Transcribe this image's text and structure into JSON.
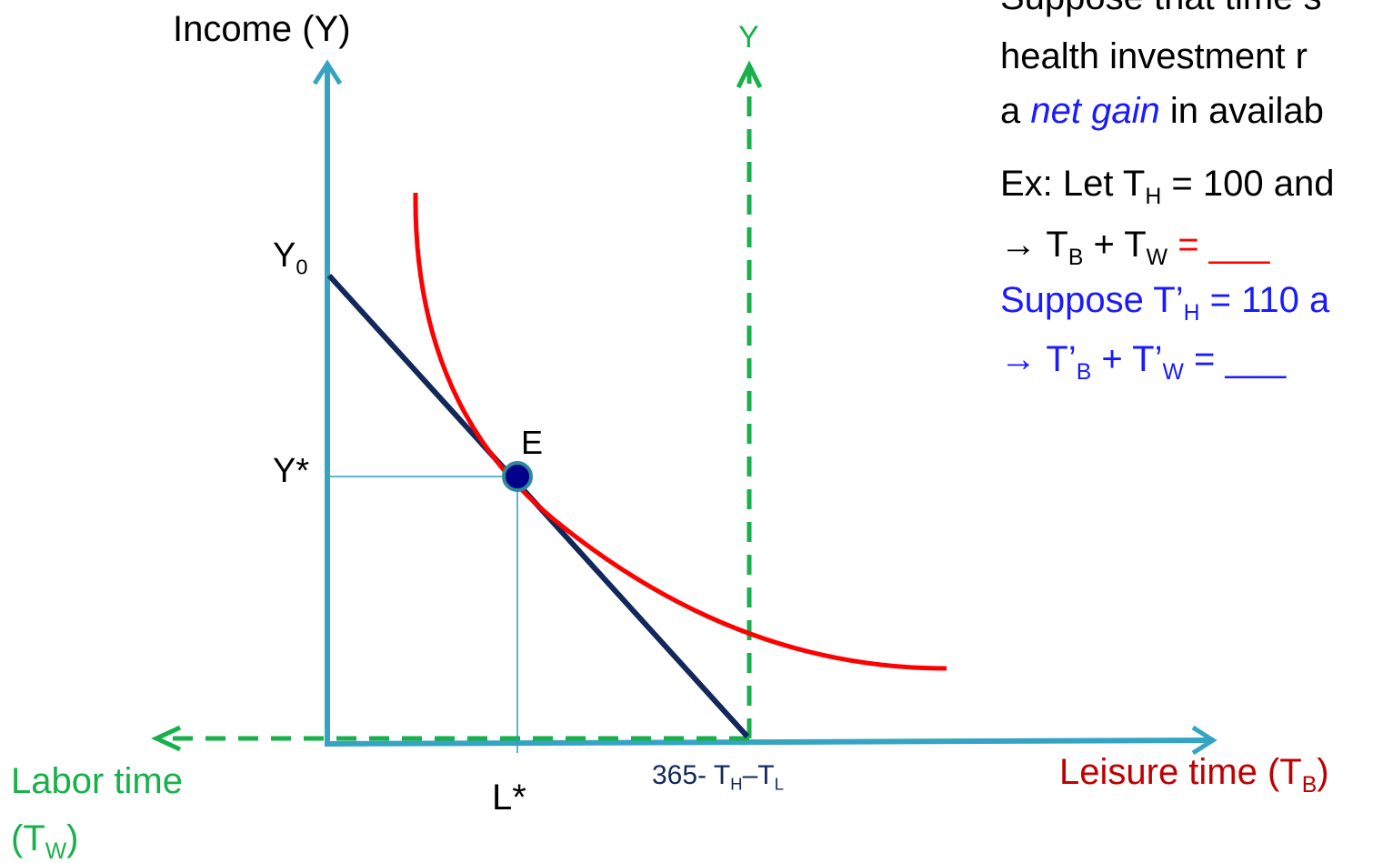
{
  "diagram": {
    "y_axis_label": [
      {
        "text": "Income (Y)"
      }
    ],
    "y_right_label": [
      {
        "text": "Y"
      }
    ],
    "y0_label": [
      {
        "text": "Y"
      },
      {
        "sub": "0"
      }
    ],
    "ystar_label": [
      {
        "text": "Y*"
      }
    ],
    "e_label": [
      {
        "text": "E"
      }
    ],
    "lstar_label": [
      {
        "text": "L*"
      }
    ],
    "endpoint_label": [
      {
        "text": "365- T"
      },
      {
        "sub": "H"
      },
      {
        "text": "–T"
      },
      {
        "sub": "L"
      }
    ],
    "labor_label_line1": [
      {
        "text": "Labor time"
      }
    ],
    "labor_label_line2": [
      {
        "text": "(T"
      },
      {
        "sub": "W"
      },
      {
        "text": ")"
      }
    ],
    "leisure_label": [
      {
        "text": "Leisure time (T"
      },
      {
        "sub": "B"
      },
      {
        "text": ")"
      }
    ]
  },
  "notes": [
    [
      {
        "text": "Suppose that time s"
      }
    ],
    [
      {
        "text": "health investment r"
      }
    ],
    [
      {
        "text": "a "
      },
      {
        "text": "net gain",
        "italic": true,
        "color": "#1a1aff"
      },
      {
        "text": " in availab"
      }
    ],
    [
      {
        "text": "Ex: Let T"
      },
      {
        "sub": "H"
      },
      {
        "text": " = 100 and"
      }
    ],
    [
      {
        "text": "→ T"
      },
      {
        "sub": "B"
      },
      {
        "text": " + T"
      },
      {
        "sub": "W"
      },
      {
        "text": " = ___",
        "color": "#ff0000"
      }
    ],
    [
      {
        "text": "Suppose T’"
      },
      {
        "sub": "H"
      },
      {
        "text": " = 110 a"
      }
    ],
    [
      {
        "text": "→ T’"
      },
      {
        "sub": "B"
      },
      {
        "text": " + T’"
      },
      {
        "sub": "W"
      },
      {
        "text": " = ___"
      }
    ]
  ]
}
